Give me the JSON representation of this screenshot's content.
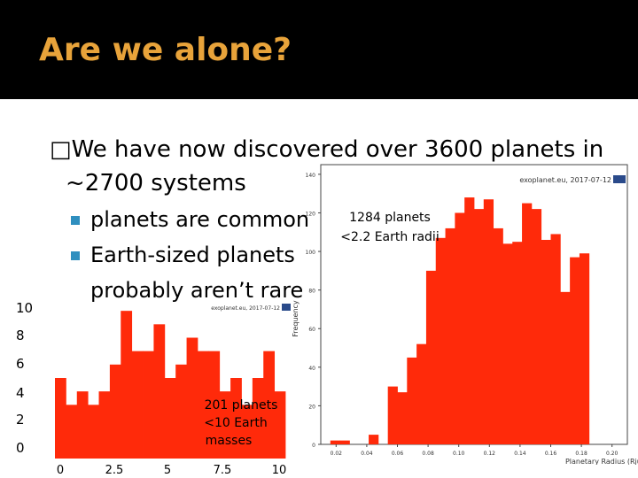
{
  "title": "Are we alone?",
  "bullets": {
    "main": "\u0000We have now discovered over 3600 planets in ~2700 systems",
    "main_line1": "We have now discovered over 3600 planets in",
    "main_line2": "~2700 systems",
    "sub": [
      "planets are common",
      "Earth-sized planets",
      "probably aren’t rare"
    ]
  },
  "colors": {
    "title": "#e8a33a",
    "bar": "#ff2a0a",
    "bullet": "#2f8fbf"
  },
  "chart_data": [
    {
      "type": "bar",
      "watermark": "exoplanet.eu, 2017-07-12",
      "annotation": [
        "1284 planets",
        "<2.2 Earth radii"
      ],
      "xlabel": "Planetary Radius (Rjup)",
      "ylabel": "Frequency",
      "xticks": [
        "0.02",
        "0.04",
        "0.06",
        "0.08",
        "0.10",
        "0.12",
        "0.14",
        "0.16",
        "0.18",
        "0.20"
      ],
      "yticks": [
        "0",
        "20",
        "40",
        "60",
        "80",
        "100",
        "120",
        "140"
      ],
      "values": [
        0,
        2,
        2,
        0,
        0,
        5,
        0,
        30,
        27,
        45,
        52,
        90,
        107,
        112,
        120,
        128,
        122,
        127,
        112,
        104,
        105,
        125,
        122,
        106,
        109,
        79,
        97,
        99,
        0,
        0,
        0,
        0
      ]
    },
    {
      "type": "bar",
      "watermark": "exoplanet.eu, 2017-07-12",
      "annotation": [
        "201 planets",
        "<10 Earth",
        "masses"
      ],
      "xticks": [
        "0",
        "2.5",
        "5",
        "7.5",
        "10"
      ],
      "yticks": [
        "0",
        "2",
        "4",
        "6",
        "8",
        "10"
      ],
      "xlim": [
        0,
        10
      ],
      "ylim": [
        0,
        10
      ],
      "values": [
        6,
        4,
        5,
        4,
        5,
        7,
        11,
        8,
        8,
        10,
        6,
        7,
        9,
        8,
        8,
        5,
        6,
        4,
        6,
        8,
        5
      ]
    }
  ]
}
